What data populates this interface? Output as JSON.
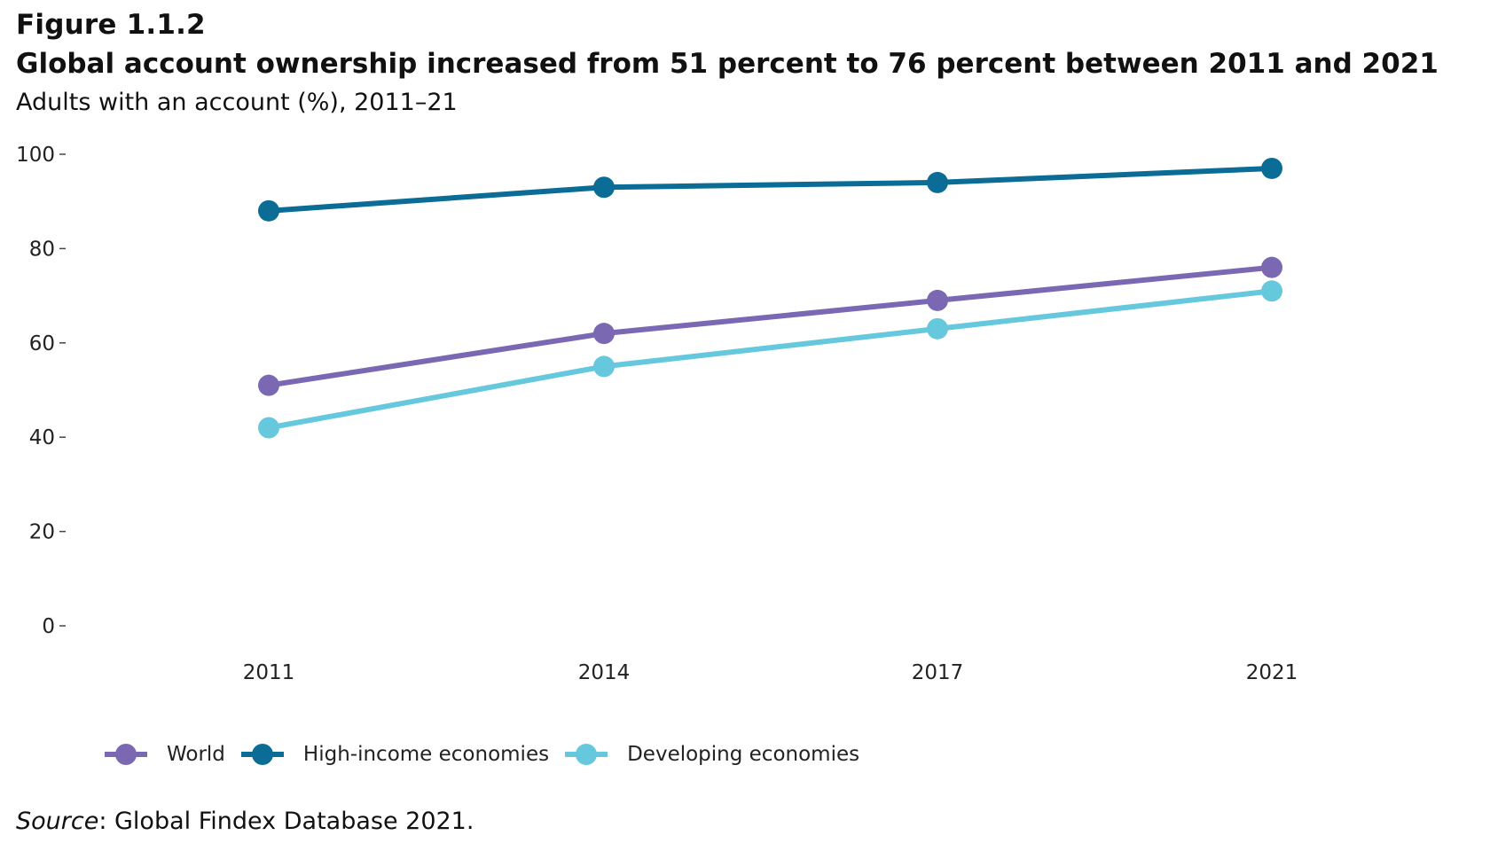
{
  "figure_label": "Figure 1.1.2",
  "source": {
    "label": "Source",
    "text": ": Global Findex Database 2021."
  },
  "chart_data": {
    "type": "line",
    "title": "Global account ownership increased from 51 percent to 76 percent between 2011 and 2021",
    "subtitle": "Adults with an account (%), 2011–21",
    "xlabel": "",
    "ylabel": "",
    "categories": [
      "2011",
      "2014",
      "2017",
      "2021"
    ],
    "ylim": [
      0,
      100
    ],
    "yticks": [
      0,
      20,
      40,
      60,
      80,
      100
    ],
    "ytick_labels": [
      "0",
      "20",
      "40",
      "60",
      "80",
      "100"
    ],
    "grid": false,
    "legend_position": "bottom-left",
    "series": [
      {
        "name": "World",
        "color": "#7b68b3",
        "values": [
          51,
          62,
          69,
          76
        ]
      },
      {
        "name": "High-income economies",
        "color": "#0b6d96",
        "values": [
          88,
          93,
          94,
          97
        ]
      },
      {
        "name": "Developing economies",
        "color": "#66c8dc",
        "values": [
          42,
          55,
          63,
          71
        ]
      }
    ]
  }
}
